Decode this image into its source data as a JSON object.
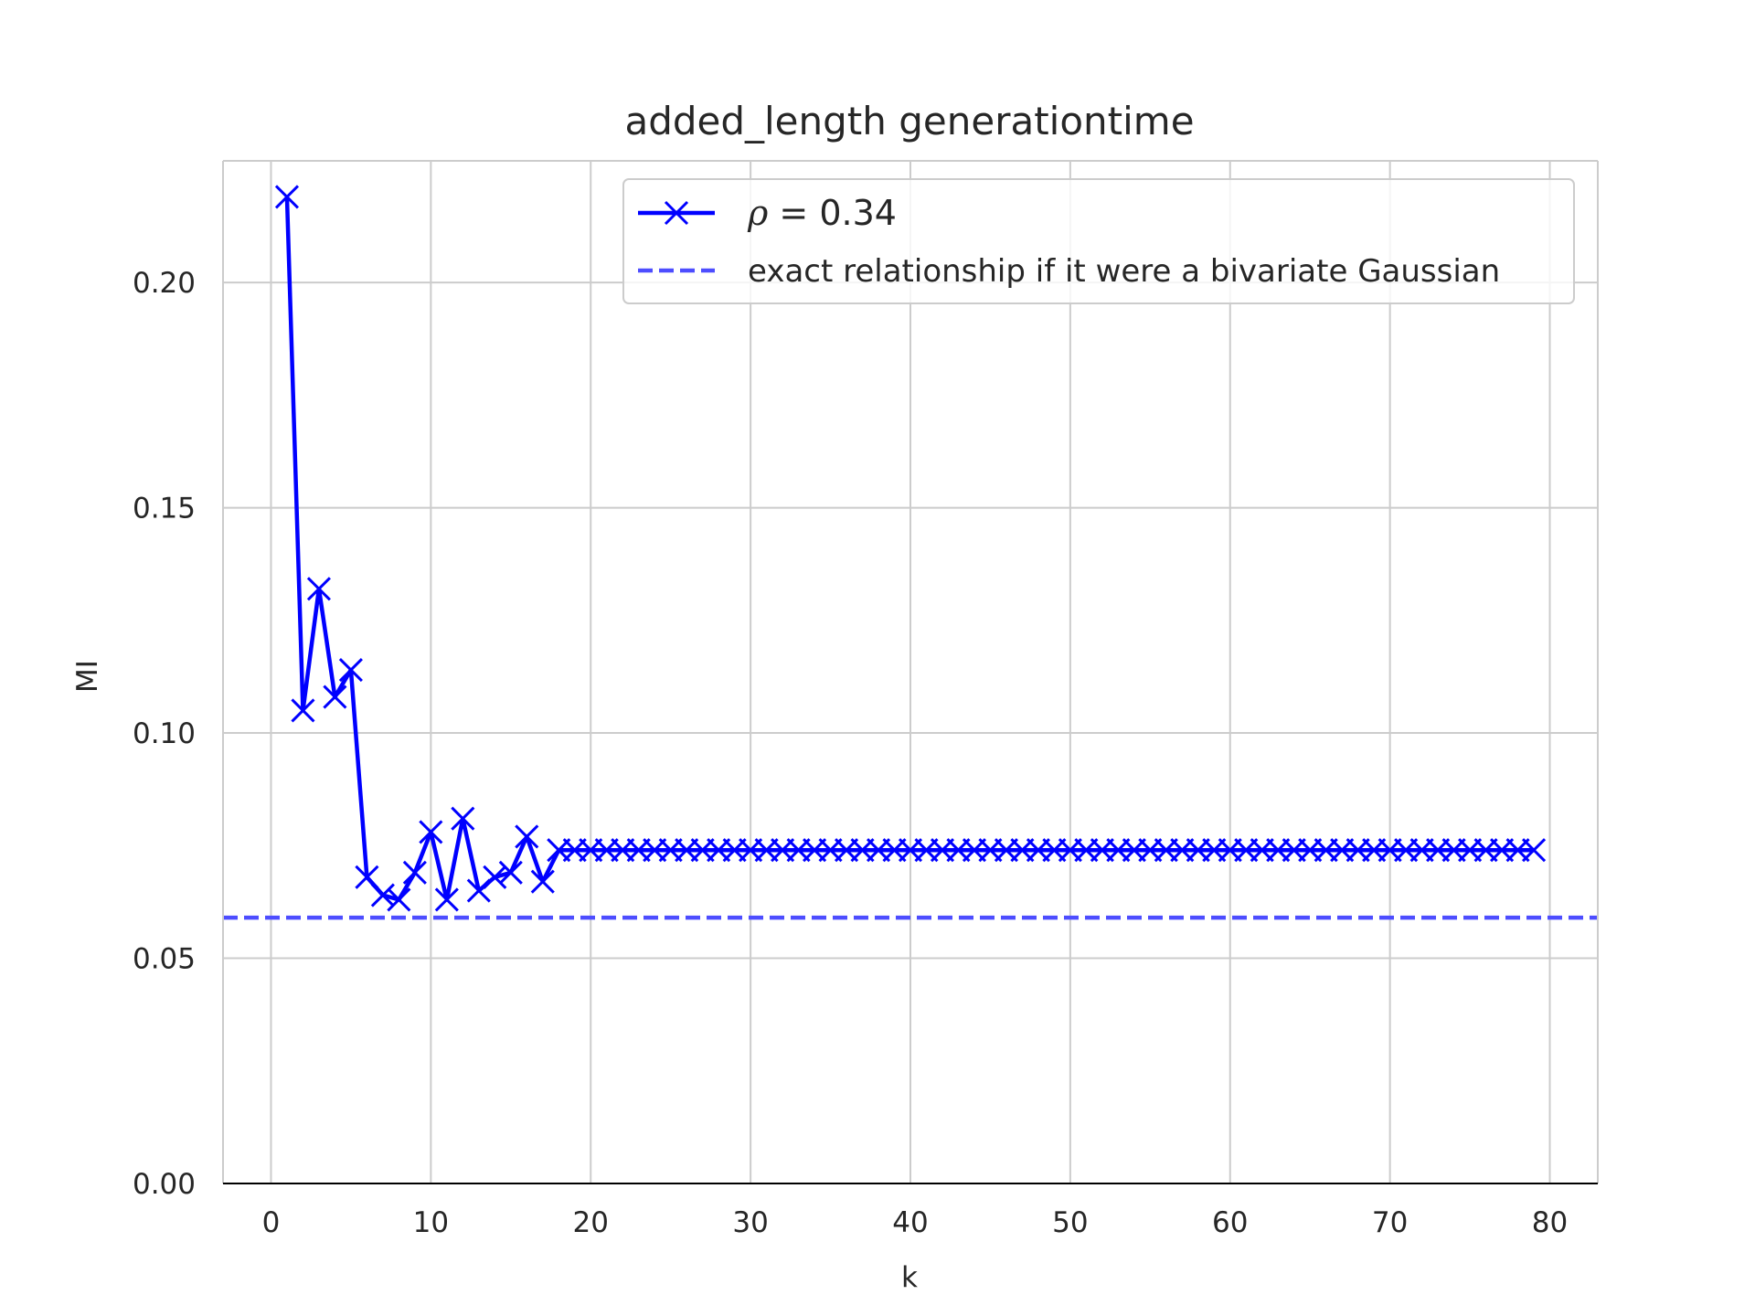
{
  "chart_data": {
    "type": "line",
    "title": "added_length generationtime",
    "xlabel": "k",
    "ylabel": "MI",
    "xlim": [
      -3,
      83
    ],
    "ylim": [
      0.0,
      0.227
    ],
    "xticks": [
      0,
      10,
      20,
      30,
      40,
      50,
      60,
      70,
      80
    ],
    "xtick_labels": [
      "0",
      "10",
      "20",
      "30",
      "40",
      "50",
      "60",
      "70",
      "80"
    ],
    "yticks": [
      0.0,
      0.05,
      0.1,
      0.15,
      0.2
    ],
    "ytick_labels": [
      "0.00",
      "0.05",
      "0.10",
      "0.15",
      "0.20"
    ],
    "grid": true,
    "legend_position": "top-right",
    "series": [
      {
        "name_symbol": "ρ",
        "name_value": " = 0.34",
        "color": "#0000ff",
        "marker": "x",
        "style": "solid",
        "x": [
          1,
          2,
          3,
          4,
          5,
          6,
          7,
          8,
          9,
          10,
          11,
          12,
          13,
          14,
          15,
          16,
          17,
          18,
          19,
          20,
          21,
          22,
          23,
          24,
          25,
          26,
          27,
          28,
          29,
          30,
          31,
          32,
          33,
          34,
          35,
          36,
          37,
          38,
          39,
          40,
          41,
          42,
          43,
          44,
          45,
          46,
          47,
          48,
          49,
          50,
          51,
          52,
          53,
          54,
          55,
          56,
          57,
          58,
          59,
          60,
          61,
          62,
          63,
          64,
          65,
          66,
          67,
          68,
          69,
          70,
          71,
          72,
          73,
          74,
          75,
          76,
          77,
          78,
          79
        ],
        "y": [
          0.219,
          0.105,
          0.132,
          0.108,
          0.114,
          0.068,
          0.064,
          0.063,
          0.069,
          0.078,
          0.063,
          0.081,
          0.065,
          0.068,
          0.069,
          0.077,
          0.067,
          0.074,
          0.074,
          0.074,
          0.074,
          0.074,
          0.074,
          0.074,
          0.074,
          0.074,
          0.074,
          0.074,
          0.074,
          0.074,
          0.074,
          0.074,
          0.074,
          0.074,
          0.074,
          0.074,
          0.074,
          0.074,
          0.074,
          0.074,
          0.074,
          0.074,
          0.074,
          0.074,
          0.074,
          0.074,
          0.074,
          0.074,
          0.074,
          0.074,
          0.074,
          0.074,
          0.074,
          0.074,
          0.074,
          0.074,
          0.074,
          0.074,
          0.074,
          0.074,
          0.074,
          0.074,
          0.074,
          0.074,
          0.074,
          0.074,
          0.074,
          0.074,
          0.074,
          0.074,
          0.074,
          0.074,
          0.074,
          0.074,
          0.074,
          0.074,
          0.074,
          0.074,
          0.074
        ]
      },
      {
        "name": "exact relationship if it were a bivariate Gaussian",
        "color": "#4d4dff",
        "style": "dashed",
        "y_constant": 0.059
      }
    ]
  }
}
